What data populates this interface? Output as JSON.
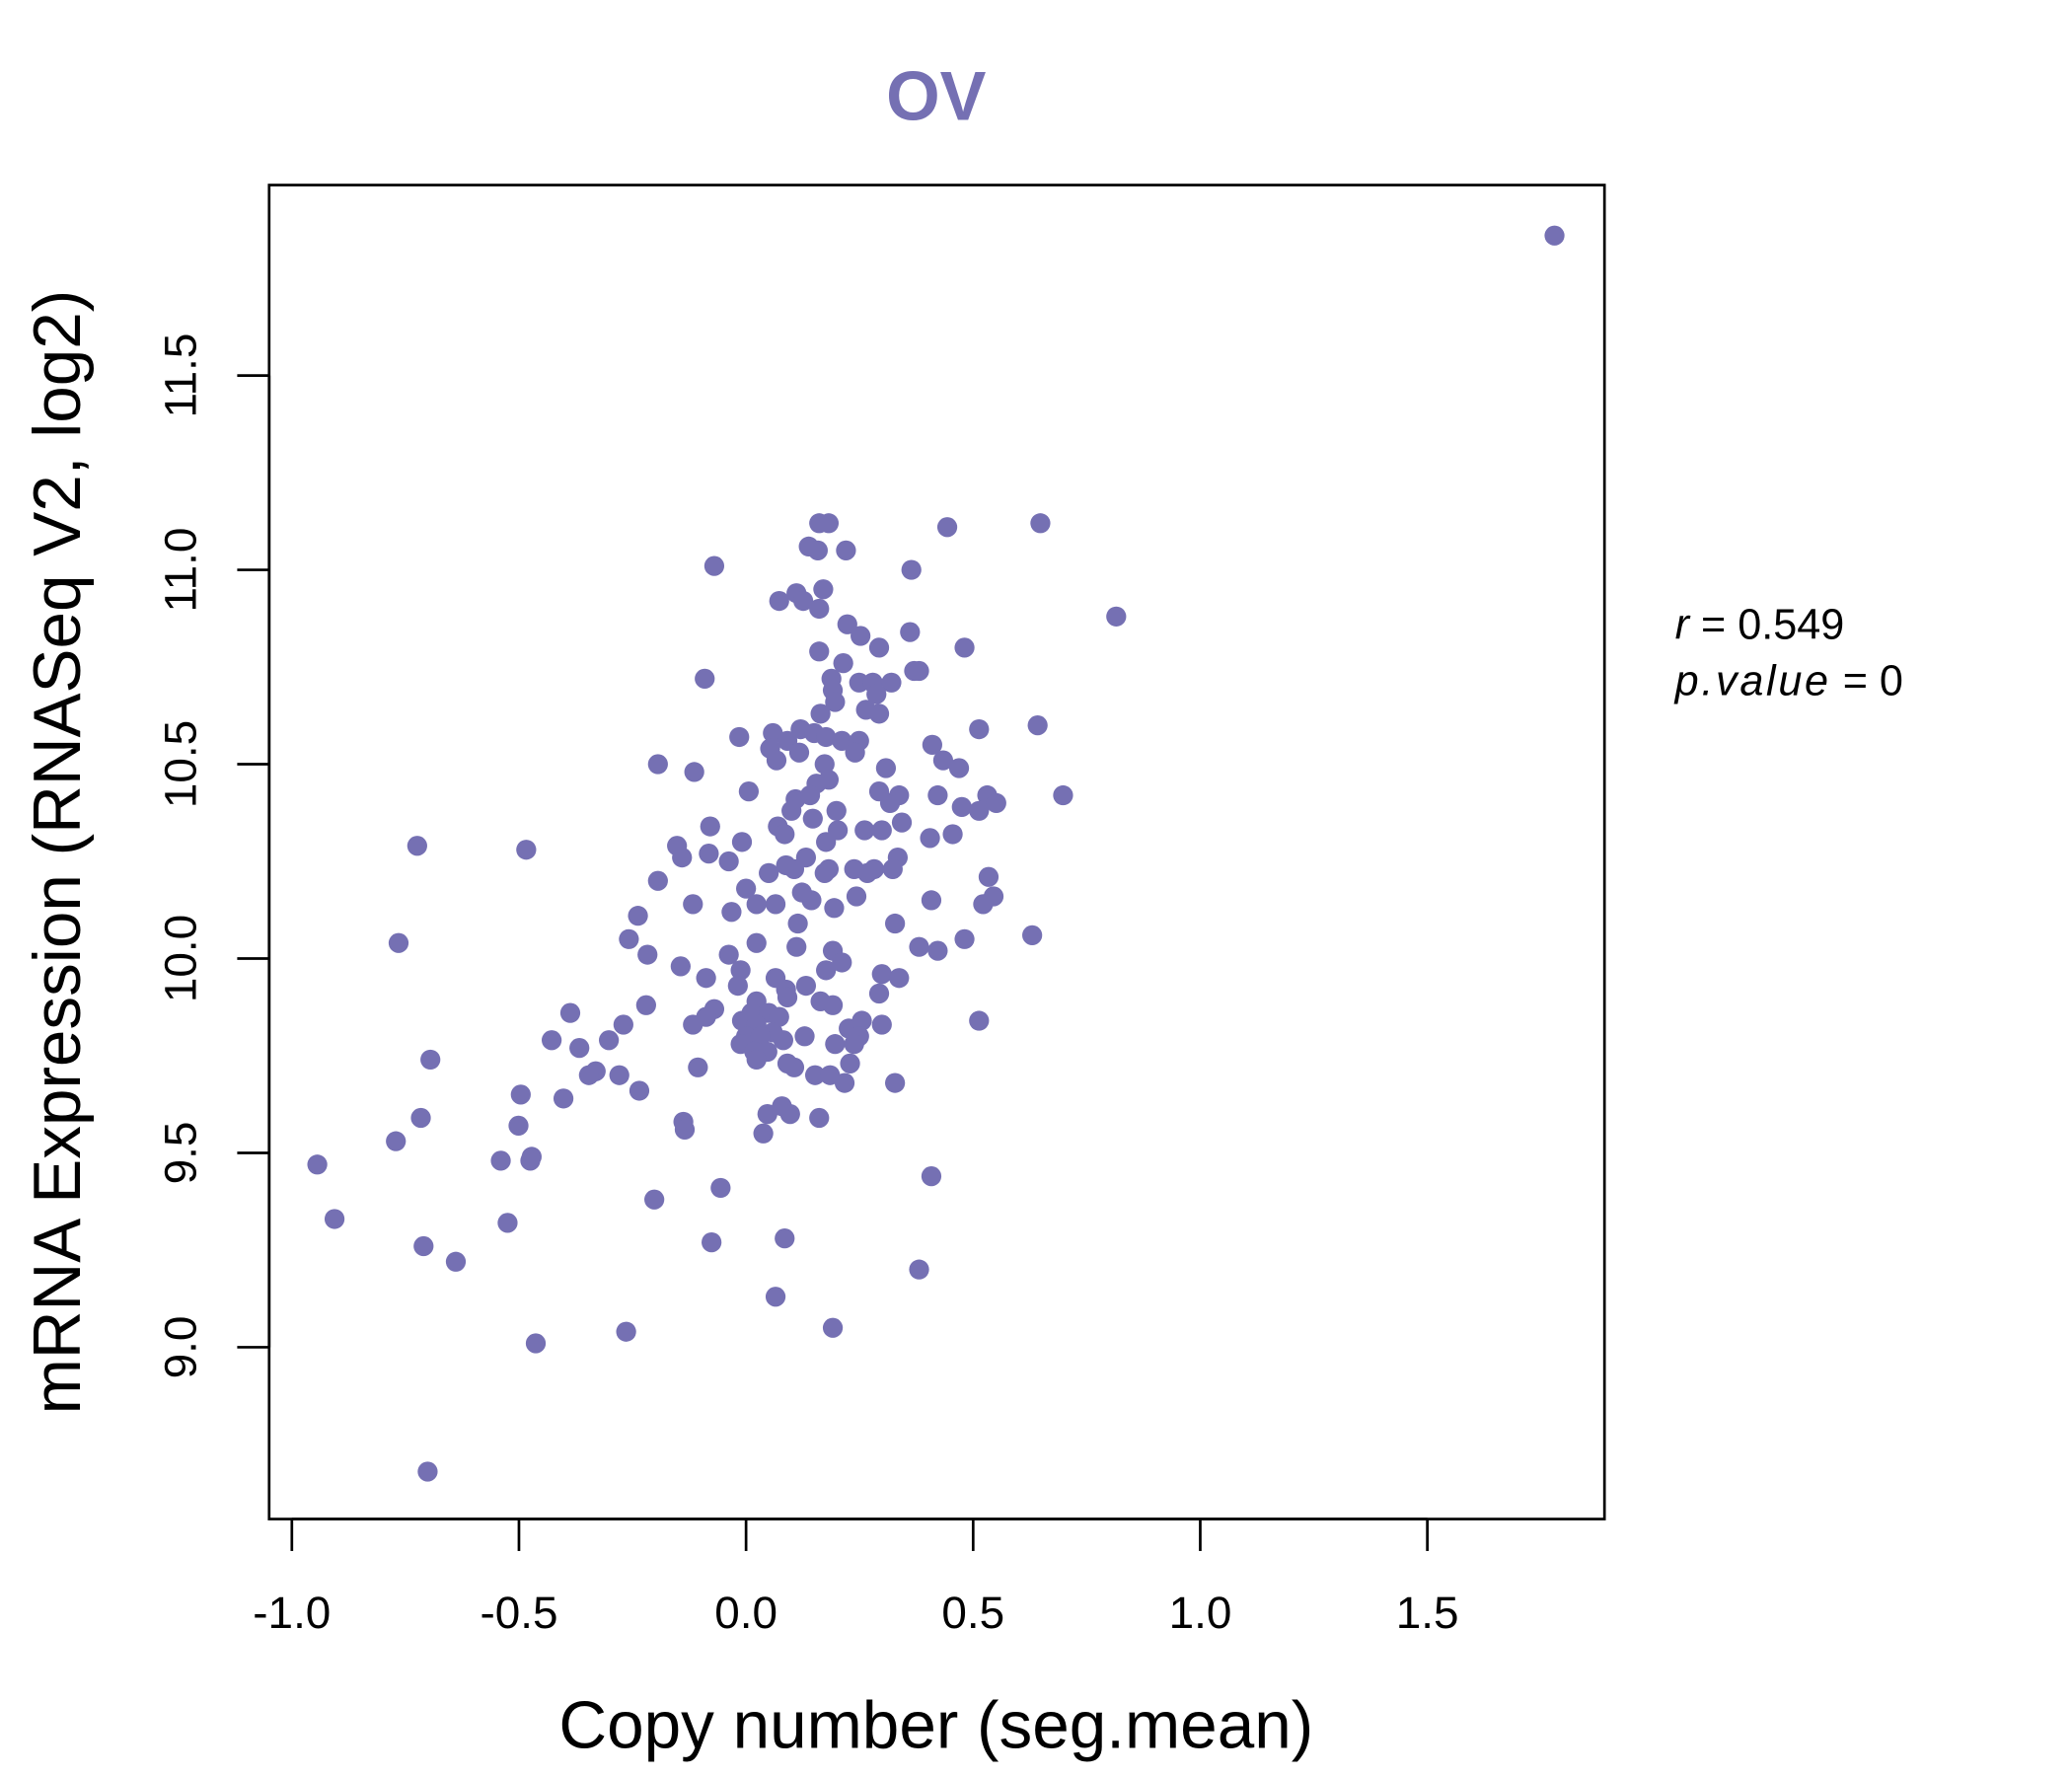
{
  "chart_data": {
    "type": "scatter",
    "title": "OV",
    "xlabel": "Copy number (seg.mean)",
    "ylabel": "mRNA Expression (RNASeq V2, log2)",
    "xlim": [
      -1.05,
      1.89
    ],
    "ylim": [
      8.558,
      11.99
    ],
    "xticks": [
      -1.0,
      -0.5,
      0.0,
      0.5,
      1.0,
      1.5
    ],
    "xtick_labels": [
      "-1.0",
      "-0.5",
      "0.0",
      "0.5",
      "1.0",
      "1.5"
    ],
    "yticks": [
      9.0,
      9.5,
      10.0,
      10.5,
      11.0,
      11.5
    ],
    "ytick_labels": [
      "9.0",
      "9.5",
      "10.0",
      "10.5",
      "11.0",
      "11.5"
    ],
    "grid": false,
    "color": "#7570B3",
    "annotation": {
      "r_label": "r",
      "r_value": "0.549",
      "p_label": "p.value",
      "p_value": "0"
    },
    "points": [
      [
        1.78,
        11.86
      ],
      [
        0.648,
        11.12
      ],
      [
        0.815,
        10.88
      ],
      [
        0.443,
        11.11
      ],
      [
        0.364,
        11.0
      ],
      [
        -0.07,
        11.01
      ],
      [
        0.161,
        11.12
      ],
      [
        0.182,
        11.12
      ],
      [
        0.138,
        11.06
      ],
      [
        0.158,
        11.05
      ],
      [
        0.22,
        11.05
      ],
      [
        0.073,
        10.92
      ],
      [
        0.111,
        10.94
      ],
      [
        0.126,
        10.92
      ],
      [
        0.17,
        10.95
      ],
      [
        0.161,
        10.9
      ],
      [
        0.223,
        10.86
      ],
      [
        0.252,
        10.83
      ],
      [
        0.293,
        10.8
      ],
      [
        0.361,
        10.84
      ],
      [
        0.481,
        10.8
      ],
      [
        0.161,
        10.79
      ],
      [
        0.214,
        10.76
      ],
      [
        0.37,
        10.74
      ],
      [
        0.381,
        10.74
      ],
      [
        0.188,
        10.72
      ],
      [
        0.249,
        10.71
      ],
      [
        0.279,
        10.71
      ],
      [
        0.32,
        10.71
      ],
      [
        -0.091,
        10.72
      ],
      [
        0.191,
        10.69
      ],
      [
        0.287,
        10.68
      ],
      [
        0.196,
        10.66
      ],
      [
        0.264,
        10.64
      ],
      [
        0.293,
        10.63
      ],
      [
        0.164,
        10.63
      ],
      [
        0.642,
        10.6
      ],
      [
        0.513,
        10.59
      ],
      [
        0.12,
        10.59
      ],
      [
        0.15,
        10.58
      ],
      [
        0.059,
        10.58
      ],
      [
        -0.015,
        10.57
      ],
      [
        0.176,
        10.57
      ],
      [
        0.211,
        10.56
      ],
      [
        0.249,
        10.56
      ],
      [
        0.41,
        10.55
      ],
      [
        0.091,
        10.56
      ],
      [
        0.053,
        10.54
      ],
      [
        0.117,
        10.53
      ],
      [
        0.24,
        10.53
      ],
      [
        0.067,
        10.51
      ],
      [
        0.434,
        10.51
      ],
      [
        0.173,
        10.5
      ],
      [
        -0.194,
        10.5
      ],
      [
        0.469,
        10.49
      ],
      [
        -0.114,
        10.48
      ],
      [
        0.308,
        10.49
      ],
      [
        0.155,
        10.45
      ],
      [
        0.182,
        10.46
      ],
      [
        0.006,
        10.43
      ],
      [
        0.293,
        10.43
      ],
      [
        0.337,
        10.42
      ],
      [
        0.422,
        10.42
      ],
      [
        0.531,
        10.42
      ],
      [
        0.698,
        10.42
      ],
      [
        0.109,
        10.41
      ],
      [
        0.141,
        10.42
      ],
      [
        0.551,
        10.4
      ],
      [
        0.317,
        10.4
      ],
      [
        0.513,
        10.38
      ],
      [
        0.475,
        10.39
      ],
      [
        0.199,
        10.38
      ],
      [
        0.1,
        10.38
      ],
      [
        0.147,
        10.36
      ],
      [
        0.07,
        10.34
      ],
      [
        -0.079,
        10.34
      ],
      [
        0.343,
        10.35
      ],
      [
        0.202,
        10.33
      ],
      [
        0.261,
        10.33
      ],
      [
        0.299,
        10.33
      ],
      [
        0.085,
        10.32
      ],
      [
        0.455,
        10.32
      ],
      [
        -0.009,
        10.3
      ],
      [
        0.405,
        10.31
      ],
      [
        0.176,
        10.3
      ],
      [
        -0.724,
        10.29
      ],
      [
        -0.152,
        10.29
      ],
      [
        -0.484,
        10.28
      ],
      [
        -0.082,
        10.27
      ],
      [
        -0.141,
        10.26
      ],
      [
        0.132,
        10.26
      ],
      [
        0.334,
        10.26
      ],
      [
        -0.038,
        10.25
      ],
      [
        0.088,
        10.24
      ],
      [
        0.106,
        10.23
      ],
      [
        0.182,
        10.23
      ],
      [
        0.238,
        10.23
      ],
      [
        0.282,
        10.23
      ],
      [
        0.323,
        10.23
      ],
      [
        0.05,
        10.22
      ],
      [
        0.173,
        10.22
      ],
      [
        0.267,
        10.22
      ],
      [
        -0.194,
        10.2
      ],
      [
        0.534,
        10.21
      ],
      [
        0.0,
        10.18
      ],
      [
        0.243,
        10.16
      ],
      [
        0.545,
        10.16
      ],
      [
        0.065,
        10.14
      ],
      [
        -0.117,
        10.14
      ],
      [
        0.144,
        10.15
      ],
      [
        0.194,
        10.13
      ],
      [
        0.408,
        10.15
      ],
      [
        0.522,
        10.14
      ],
      [
        0.023,
        10.14
      ],
      [
        0.123,
        10.17
      ],
      [
        -0.032,
        10.12
      ],
      [
        -0.238,
        10.11
      ],
      [
        0.114,
        10.09
      ],
      [
        0.328,
        10.09
      ],
      [
        -0.258,
        10.05
      ],
      [
        0.023,
        10.04
      ],
      [
        -0.765,
        10.04
      ],
      [
        0.111,
        10.03
      ],
      [
        0.191,
        10.02
      ],
      [
        0.381,
        10.03
      ],
      [
        0.422,
        10.02
      ],
      [
        0.481,
        10.05
      ],
      [
        0.63,
        10.06
      ],
      [
        -0.217,
        10.01
      ],
      [
        -0.038,
        10.01
      ],
      [
        0.211,
        9.99
      ],
      [
        -0.144,
        9.98
      ],
      [
        -0.012,
        9.97
      ],
      [
        0.176,
        9.97
      ],
      [
        -0.088,
        9.95
      ],
      [
        0.299,
        9.96
      ],
      [
        0.337,
        9.95
      ],
      [
        0.065,
        9.95
      ],
      [
        -0.018,
        9.93
      ],
      [
        0.132,
        9.93
      ],
      [
        0.088,
        9.92
      ],
      [
        0.293,
        9.91
      ],
      [
        0.091,
        9.9
      ],
      [
        0.164,
        9.89
      ],
      [
        -0.22,
        9.88
      ],
      [
        0.023,
        9.89
      ],
      [
        0.191,
        9.88
      ],
      [
        -0.07,
        9.87
      ],
      [
        0.012,
        9.86
      ],
      [
        -0.387,
        9.86
      ],
      [
        0.05,
        9.86
      ],
      [
        -0.088,
        9.85
      ],
      [
        0.073,
        9.85
      ],
      [
        -0.009,
        9.84
      ],
      [
        0.255,
        9.84
      ],
      [
        0.023,
        9.83
      ],
      [
        0.513,
        9.84
      ],
      [
        0.299,
        9.83
      ],
      [
        -0.27,
        9.83
      ],
      [
        -0.117,
        9.83
      ],
      [
        0.226,
        9.82
      ],
      [
        0.059,
        9.81
      ],
      [
        0.129,
        9.8
      ],
      [
        0.0,
        9.8
      ],
      [
        0.032,
        9.8
      ],
      [
        0.249,
        9.8
      ],
      [
        -0.302,
        9.79
      ],
      [
        -0.428,
        9.79
      ],
      [
        0.082,
        9.79
      ],
      [
        -0.012,
        9.78
      ],
      [
        0.196,
        9.78
      ],
      [
        -0.367,
        9.77
      ],
      [
        0.238,
        9.78
      ],
      [
        0.018,
        9.76
      ],
      [
        0.047,
        9.76
      ],
      [
        0.023,
        9.74
      ],
      [
        0.229,
        9.73
      ],
      [
        0.091,
        9.73
      ],
      [
        0.106,
        9.72
      ],
      [
        -0.106,
        9.72
      ],
      [
        -0.331,
        9.71
      ],
      [
        -0.346,
        9.7
      ],
      [
        -0.279,
        9.7
      ],
      [
        0.152,
        9.7
      ],
      [
        0.185,
        9.7
      ],
      [
        0.217,
        9.68
      ],
      [
        0.328,
        9.68
      ],
      [
        -0.695,
        9.74
      ],
      [
        -0.235,
        9.66
      ],
      [
        -0.496,
        9.65
      ],
      [
        -0.402,
        9.64
      ],
      [
        0.047,
        9.6
      ],
      [
        0.079,
        9.62
      ],
      [
        0.097,
        9.6
      ],
      [
        0.161,
        9.59
      ],
      [
        -0.716,
        9.59
      ],
      [
        -0.138,
        9.58
      ],
      [
        -0.135,
        9.56
      ],
      [
        -0.501,
        9.57
      ],
      [
        0.038,
        9.55
      ],
      [
        -0.771,
        9.53
      ],
      [
        -0.54,
        9.48
      ],
      [
        -0.472,
        9.49
      ],
      [
        -0.475,
        9.48
      ],
      [
        -0.944,
        9.47
      ],
      [
        0.408,
        9.44
      ],
      [
        -0.056,
        9.41
      ],
      [
        -0.202,
        9.38
      ],
      [
        -0.906,
        9.33
      ],
      [
        -0.525,
        9.32
      ],
      [
        0.085,
        9.28
      ],
      [
        -0.71,
        9.26
      ],
      [
        -0.076,
        9.27
      ],
      [
        -0.639,
        9.22
      ],
      [
        0.381,
        9.2
      ],
      [
        0.065,
        9.13
      ],
      [
        -0.264,
        9.04
      ],
      [
        0.191,
        9.05
      ],
      [
        -0.463,
        9.01
      ],
      [
        -0.701,
        8.68
      ]
    ]
  }
}
